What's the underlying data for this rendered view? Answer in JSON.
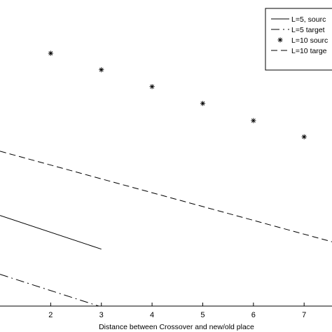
{
  "chart_data": {
    "type": "line",
    "xlabel": "Distance between Crossover and new/old place",
    "ylabel": "",
    "title": "",
    "xlim": [
      1,
      7.55
    ],
    "x_ticks": [
      2,
      3,
      4,
      5,
      6,
      7
    ],
    "ylim": [
      0,
      1
    ],
    "grid": false,
    "legend_position": "top-right",
    "legend": [
      {
        "label": "L=5, sourc",
        "style": "solid"
      },
      {
        "label": "L=5 target",
        "style": "dash-dot"
      },
      {
        "label": "L=10 sourc",
        "style": "star-marker"
      },
      {
        "label": "L=10 targe",
        "style": "dashed"
      }
    ],
    "series": [
      {
        "style": "solid",
        "x": [
          1,
          3
        ],
        "y": [
          0.296,
          0.186
        ]
      },
      {
        "style": "dash-dot",
        "x": [
          1,
          2.95
        ],
        "y": [
          0.104,
          0.0
        ]
      },
      {
        "style": "star-marker",
        "x": [
          2,
          3,
          4,
          5,
          6,
          7
        ],
        "y": [
          0.826,
          0.772,
          0.717,
          0.662,
          0.606,
          0.553
        ]
      },
      {
        "style": "dashed",
        "x": [
          1,
          7.55
        ],
        "y": [
          0.506,
          0.21
        ]
      }
    ]
  }
}
